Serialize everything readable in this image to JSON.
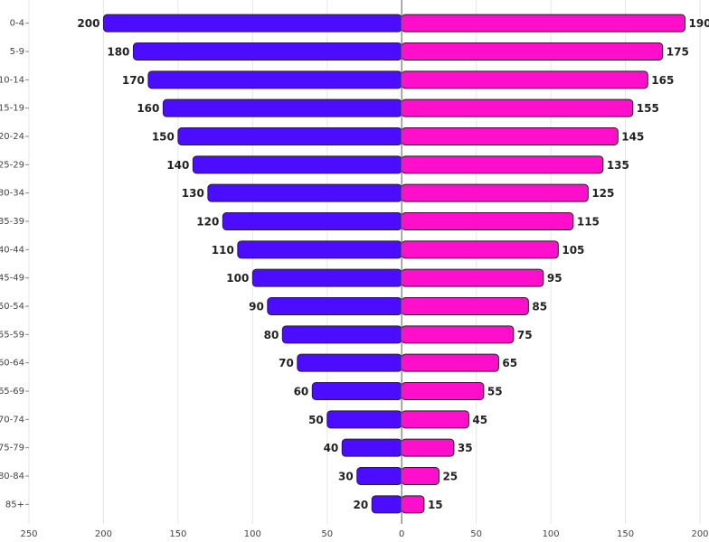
{
  "chart_data": {
    "type": "pyramid",
    "categories": [
      "0-4",
      "5-9",
      "10-14",
      "15-19",
      "20-24",
      "25-29",
      "30-34",
      "35-39",
      "40-44",
      "45-49",
      "50-54",
      "55-59",
      "60-64",
      "65-69",
      "70-74",
      "75-79",
      "80-84",
      "85+"
    ],
    "series": [
      {
        "color": "#4b0cff",
        "values": [
          -200,
          -180,
          -170,
          -160,
          -150,
          -140,
          -130,
          -120,
          -110,
          -100,
          -90,
          -80,
          -70,
          -60,
          -50,
          -40,
          -30,
          -20
        ],
        "value_labels": [
          "200",
          "180",
          "170",
          "160",
          "150",
          "140",
          "130",
          "120",
          "110",
          "100",
          "90",
          "80",
          "70",
          "60",
          "50",
          "40",
          "30",
          "20"
        ]
      },
      {
        "color": "#ff0fcc",
        "values": [
          190,
          175,
          165,
          155,
          145,
          135,
          125,
          115,
          105,
          95,
          85,
          75,
          65,
          55,
          45,
          35,
          25,
          15
        ]
      }
    ],
    "xlim": [
      -250,
      200
    ],
    "xticks": [
      {
        "value": -250,
        "label": "250"
      },
      {
        "value": -200,
        "label": "200"
      },
      {
        "value": -150,
        "label": "150"
      },
      {
        "value": -100,
        "label": "100"
      },
      {
        "value": -50,
        "label": "50"
      },
      0,
      50,
      100,
      150,
      200
    ],
    "grid": true
  }
}
